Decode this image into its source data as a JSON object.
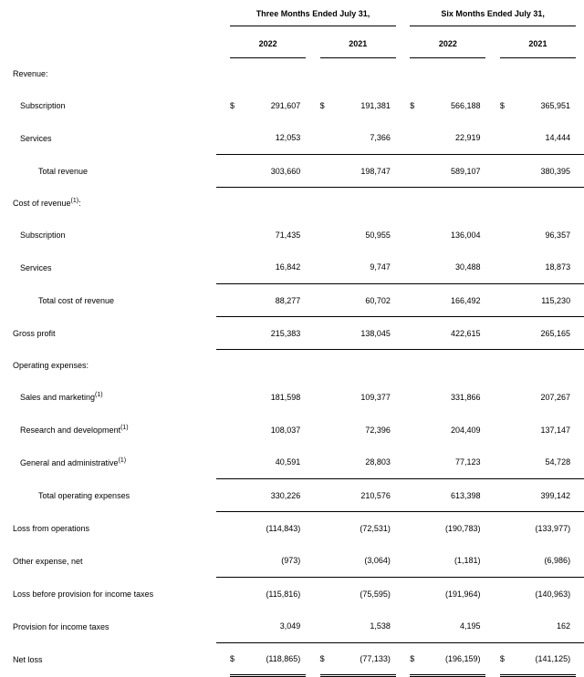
{
  "type": "table",
  "background_color": "#ffffff",
  "text_color": "#000000",
  "border_color": "#000000",
  "font_family": "Arial",
  "base_fontsize": 9,
  "period_headers": [
    "Three Months Ended July 31,",
    "Six Months Ended July 31,"
  ],
  "year_headers": [
    "2022",
    "2021",
    "2022",
    "2021"
  ],
  "currency_symbol": "$",
  "footnote_marker": "(1)",
  "sections": {
    "revenue_label": "Revenue:",
    "cost_label": "Cost of revenue",
    "opex_label": "Operating expenses:"
  },
  "rows": [
    {
      "label": "Subscription",
      "indent": 1,
      "dollar": true,
      "vals": [
        "291,607",
        "191,381",
        "566,188",
        "365,951"
      ]
    },
    {
      "label": "Services",
      "indent": 1,
      "vals": [
        "12,053",
        "7,366",
        "22,919",
        "14,444"
      ],
      "border_bottom": true
    },
    {
      "label": "Total revenue",
      "indent": 2,
      "vals": [
        "303,660",
        "198,747",
        "589,107",
        "380,395"
      ],
      "border_bottom": true
    },
    {
      "label": "Subscription",
      "indent": 1,
      "vals": [
        "71,435",
        "50,955",
        "136,004",
        "96,357"
      ]
    },
    {
      "label": "Services",
      "indent": 1,
      "vals": [
        "16,842",
        "9,747",
        "30,488",
        "18,873"
      ],
      "border_bottom": true
    },
    {
      "label": "Total cost of revenue",
      "indent": 2,
      "vals": [
        "88,277",
        "60,702",
        "166,492",
        "115,230"
      ],
      "border_bottom": true
    },
    {
      "label": "Gross profit",
      "indent": 0,
      "vals": [
        "215,383",
        "138,045",
        "422,615",
        "265,165"
      ],
      "border_bottom": true
    },
    {
      "label": "Sales and marketing",
      "indent": 1,
      "foot": true,
      "vals": [
        "181,598",
        "109,377",
        "331,866",
        "207,267"
      ]
    },
    {
      "label": "Research and development",
      "indent": 1,
      "foot": true,
      "vals": [
        "108,037",
        "72,396",
        "204,409",
        "137,147"
      ]
    },
    {
      "label": "General and administrative",
      "indent": 1,
      "foot": true,
      "vals": [
        "40,591",
        "28,803",
        "77,123",
        "54,728"
      ],
      "border_bottom": true
    },
    {
      "label": "Total operating expenses",
      "indent": 2,
      "vals": [
        "330,226",
        "210,576",
        "613,398",
        "399,142"
      ],
      "border_bottom": true
    },
    {
      "label": "Loss from operations",
      "indent": 0,
      "vals": [
        "(114,843)",
        "(72,531)",
        "(190,783)",
        "(133,977)"
      ]
    },
    {
      "label": "Other expense, net",
      "indent": 0,
      "vals": [
        "(973)",
        "(3,064)",
        "(1,181)",
        "(6,986)"
      ],
      "border_bottom": true
    },
    {
      "label": "Loss before provision for income taxes",
      "indent": 0,
      "vals": [
        "(115,816)",
        "(75,595)",
        "(191,964)",
        "(140,963)"
      ]
    },
    {
      "label": "Provision for income taxes",
      "indent": 0,
      "vals": [
        "3,049",
        "1,538",
        "4,195",
        "162"
      ],
      "border_bottom": true
    },
    {
      "label": "Net loss",
      "indent": 0,
      "dollar": true,
      "dbl": true,
      "vals": [
        "(118,865)",
        "(77,133)",
        "(196,159)",
        "(141,125)"
      ]
    }
  ]
}
